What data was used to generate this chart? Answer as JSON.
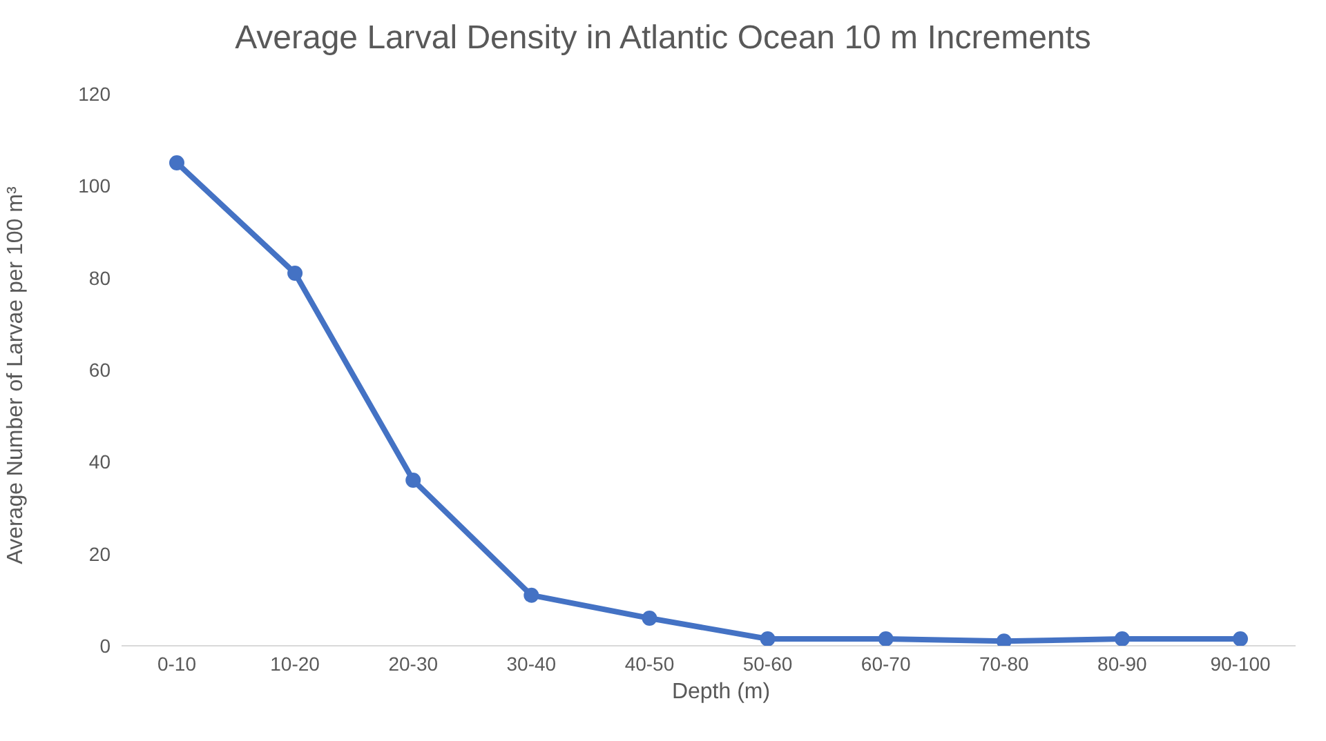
{
  "chart_data": {
    "type": "line",
    "title": "Average Larval Density in Atlantic Ocean 10 m Increments",
    "xlabel": "Depth (m)",
    "ylabel": "Average Number of Larvae per 100 m³",
    "categories": [
      "0-10",
      "10-20",
      "20-30",
      "30-40",
      "40-50",
      "50-60",
      "60-70",
      "70-80",
      "80-90",
      "90-100"
    ],
    "series": [
      {
        "color": "#4472c4",
        "values": [
          105,
          81,
          36,
          11,
          6,
          1.5,
          1.5,
          1,
          1.5,
          1.5
        ]
      }
    ],
    "ylim": [
      0,
      120
    ],
    "yticks": [
      0,
      20,
      40,
      60,
      80,
      100,
      120
    ],
    "grid": false,
    "legend": false,
    "marker": "circle",
    "line_style": "solid"
  }
}
